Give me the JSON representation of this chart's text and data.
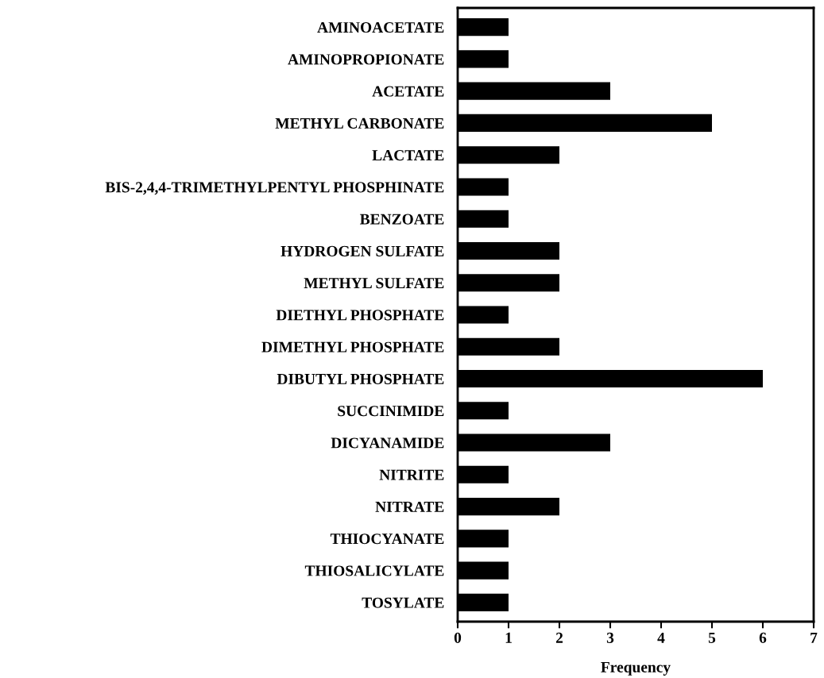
{
  "chart_data": {
    "type": "bar",
    "orientation": "horizontal",
    "xlabel": "Frequency",
    "categories": [
      "AMINOACETATE",
      "AMINOPROPIONATE",
      "ACETATE",
      "METHYL CARBONATE",
      "LACTATE",
      "BIS-2,4,4-TRIMETHYLPENTYL PHOSPHINATE",
      "BENZOATE",
      "HYDROGEN SULFATE",
      "METHYL SULFATE",
      "DIETHYL PHOSPHATE",
      "DIMETHYL PHOSPHATE",
      "DIBUTYL PHOSPHATE",
      "SUCCINIMIDE",
      "DICYANAMIDE",
      "NITRITE",
      "NITRATE",
      "THIOCYANATE",
      "THIOSALICYLATE",
      "TOSYLATE"
    ],
    "values": [
      1,
      1,
      3,
      5,
      2,
      1,
      1,
      2,
      2,
      1,
      2,
      6,
      1,
      3,
      1,
      2,
      1,
      1,
      1
    ],
    "color": "#000000",
    "xlim": [
      0,
      7
    ],
    "xticks": [
      0,
      1,
      2,
      3,
      4,
      5,
      6,
      7
    ],
    "grid": false,
    "legend": false
  }
}
